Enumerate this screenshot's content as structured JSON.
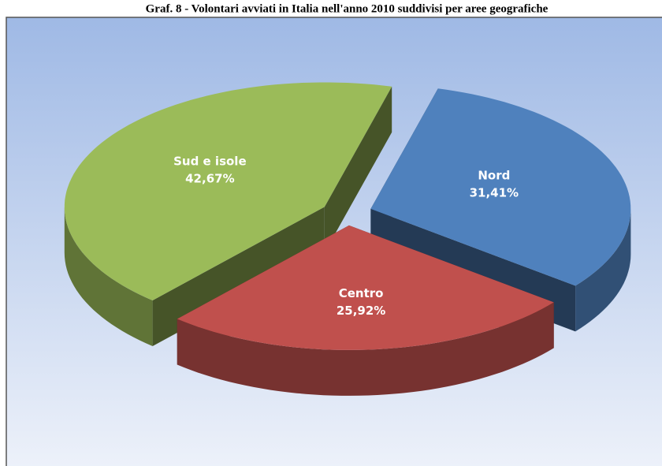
{
  "chart_data": {
    "type": "pie",
    "title": "Graf. 8 - Volontari avviati in Italia nell'anno 2010 suddivisi per aree geografiche",
    "categories": [
      "Nord",
      "Centro",
      "Sud e isole"
    ],
    "values": [
      31.41,
      25.92,
      42.67
    ],
    "value_labels": [
      "31,41%",
      "25,92%",
      "42,67%"
    ],
    "colors": [
      "#4f81bd",
      "#c0504d",
      "#9bbb59"
    ]
  }
}
